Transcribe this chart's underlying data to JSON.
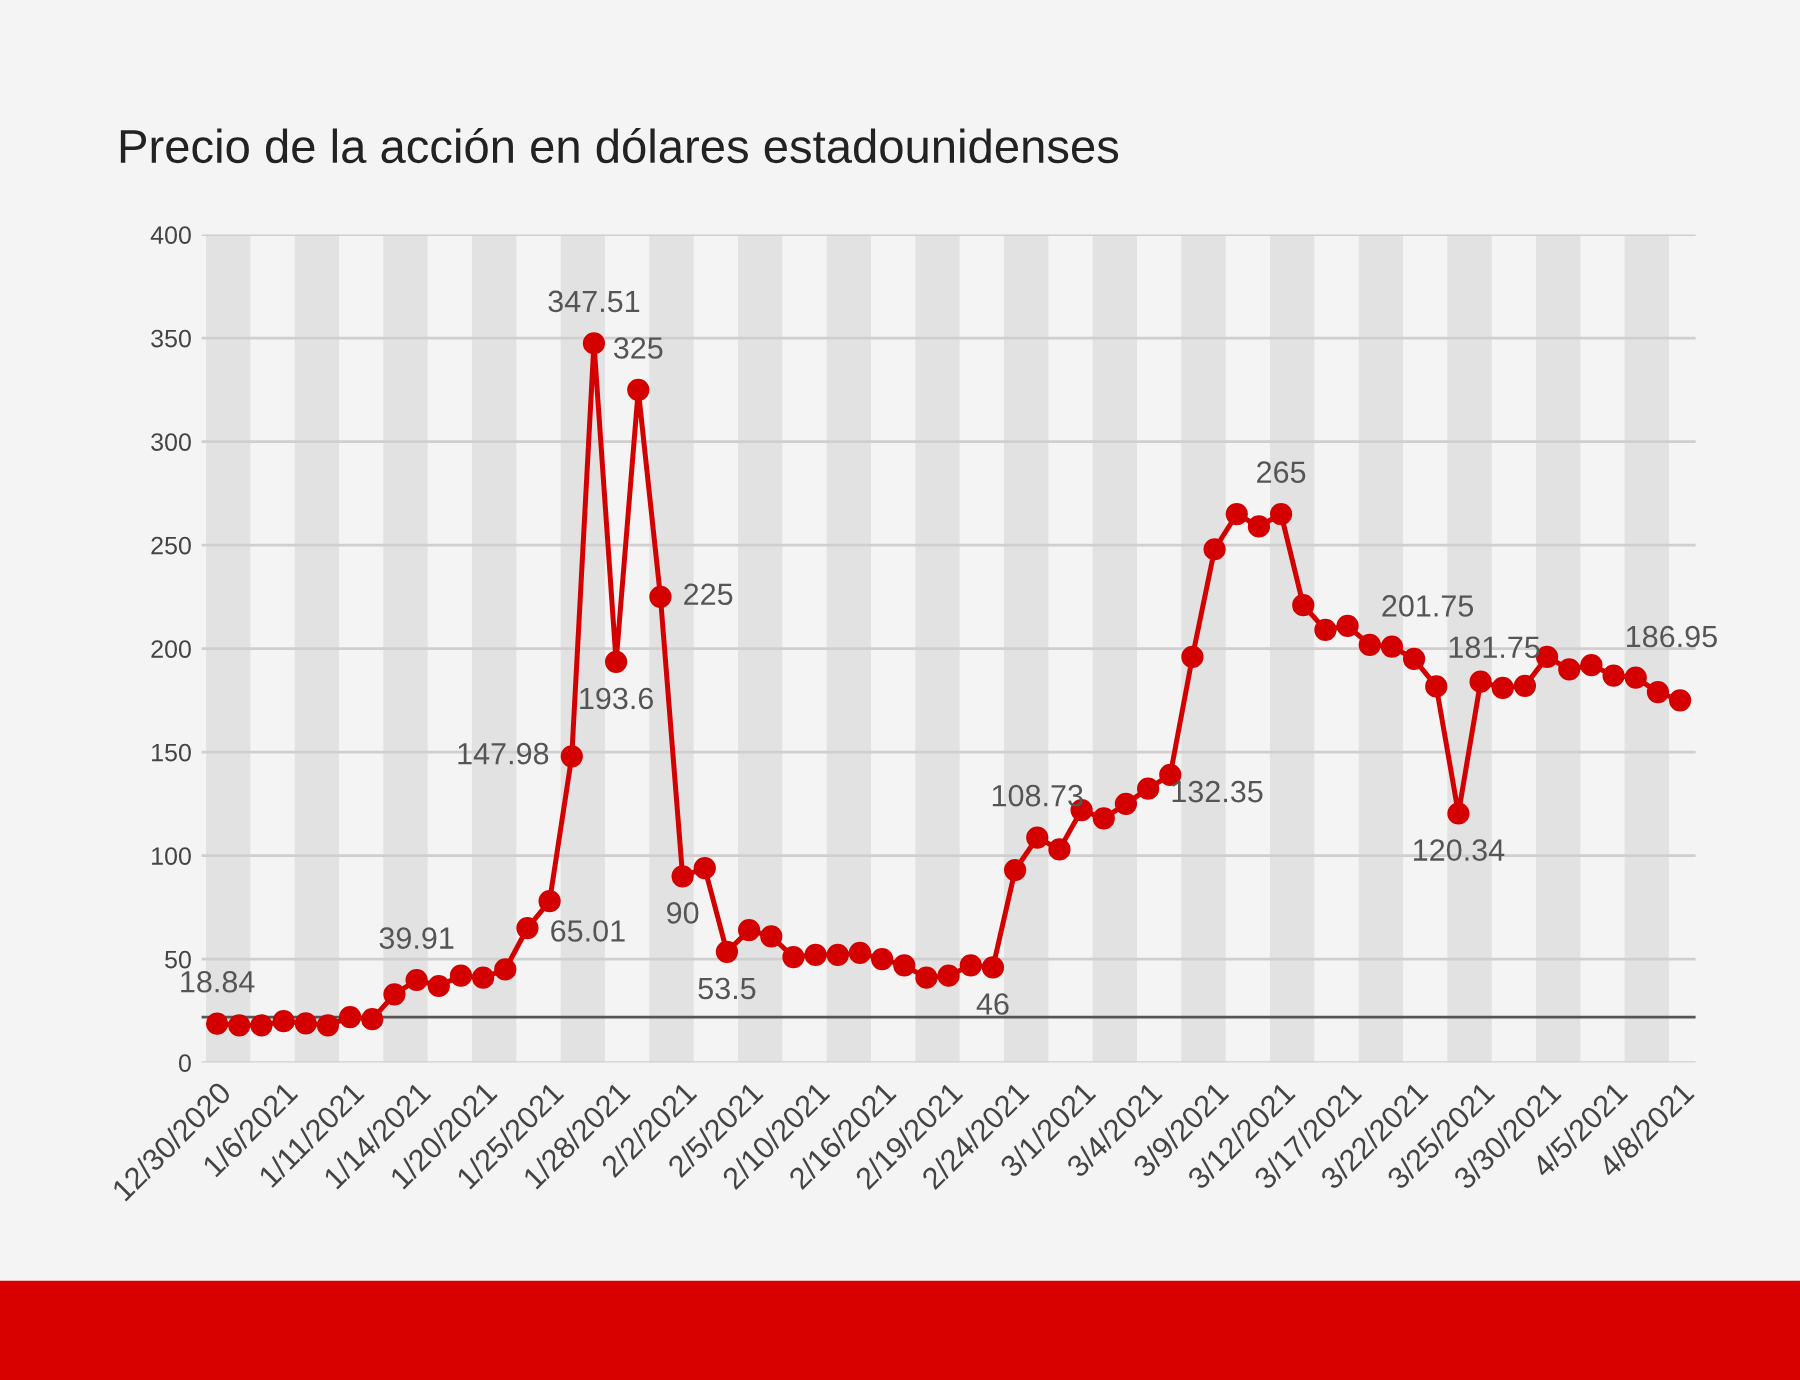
{
  "chart_data": {
    "type": "line",
    "title": "Precio de la acción en dólares estadounidenses",
    "categories": [
      "12/30/2020",
      null,
      null,
      "1/6/2021",
      null,
      null,
      "1/11/2021",
      null,
      null,
      "1/14/2021",
      null,
      null,
      "1/20/2021",
      null,
      null,
      "1/25/2021",
      null,
      null,
      "1/28/2021",
      null,
      null,
      "2/2/2021",
      null,
      null,
      "2/5/2021",
      null,
      null,
      "2/10/2021",
      null,
      null,
      "2/16/2021",
      null,
      null,
      "2/19/2021",
      null,
      null,
      "2/24/2021",
      null,
      null,
      "3/1/2021",
      null,
      null,
      "3/4/2021",
      null,
      null,
      "3/9/2021",
      null,
      null,
      "3/12/2021",
      null,
      null,
      "3/17/2021",
      null,
      null,
      "3/22/2021",
      null,
      null,
      "3/25/2021",
      null,
      null,
      "3/30/2021",
      null,
      null,
      "4/5/2021",
      null,
      null,
      "4/8/2021"
    ],
    "series": [
      {
        "color": "#d40000",
        "values": [
          18.84,
          18,
          18,
          20,
          19,
          18,
          22,
          21,
          33,
          39.91,
          37,
          42,
          41,
          45,
          65.01,
          78,
          147.98,
          347.51,
          193.6,
          325,
          225,
          90,
          94,
          53.5,
          64,
          61,
          51,
          52,
          52,
          53,
          50,
          47,
          41,
          42,
          47,
          46,
          93,
          108.73,
          103,
          122,
          118,
          125,
          132.35,
          139,
          196,
          248,
          265,
          259,
          265,
          221,
          209,
          211,
          201.75,
          201,
          195,
          181.75,
          120.34,
          184,
          181,
          182,
          196,
          190,
          192,
          186.95,
          186,
          179,
          175
        ],
        "value_labels": [
          "18.84",
          null,
          null,
          null,
          null,
          null,
          null,
          null,
          null,
          "39.91",
          null,
          null,
          null,
          null,
          "65.01",
          null,
          "147.98",
          "347.51",
          "193.6",
          "325",
          "225",
          "90",
          null,
          "53.5",
          null,
          null,
          null,
          null,
          null,
          null,
          null,
          null,
          null,
          null,
          null,
          "46",
          null,
          "108.73",
          null,
          null,
          null,
          null,
          "132.35",
          null,
          null,
          null,
          null,
          null,
          "265",
          null,
          null,
          null,
          "201.75",
          null,
          null,
          "181.75",
          "120.34",
          null,
          null,
          null,
          null,
          null,
          null,
          "186.95",
          null,
          null,
          null
        ]
      }
    ],
    "ylim": [
      0,
      400
    ],
    "yticks": [
      0,
      50,
      100,
      150,
      200,
      250,
      300,
      350,
      400
    ],
    "grid": "y",
    "marker": "circle",
    "line_style": "solid",
    "ref_lines": [
      {
        "axis": "y",
        "value": 22,
        "color": "#555555"
      }
    ]
  }
}
